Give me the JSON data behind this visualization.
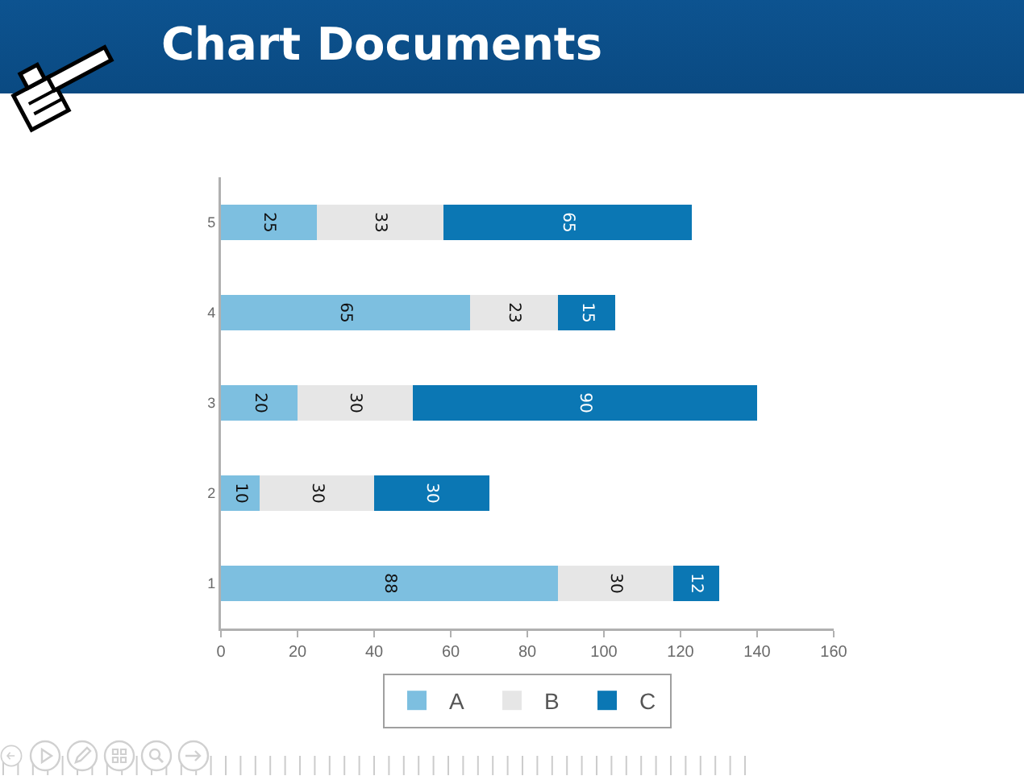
{
  "chart_data": {
    "type": "bar",
    "orientation": "horizontal",
    "stacked": true,
    "title": "Chart Documents",
    "categories": [
      "5",
      "4",
      "3",
      "2",
      "1"
    ],
    "series": [
      {
        "name": "A",
        "color": "#7dbfe0",
        "values": [
          25,
          65,
          20,
          10,
          88
        ]
      },
      {
        "name": "B",
        "color": "#e6e6e6",
        "values": [
          33,
          23,
          30,
          30,
          30
        ]
      },
      {
        "name": "C",
        "color": "#0b77b4",
        "values": [
          65,
          15,
          90,
          30,
          12
        ]
      }
    ],
    "xlim": [
      0,
      160
    ],
    "xticks": [
      0,
      20,
      40,
      60,
      80,
      100,
      120,
      140,
      160
    ],
    "data_labels": true,
    "grid": false,
    "legend": "bottom"
  }
}
